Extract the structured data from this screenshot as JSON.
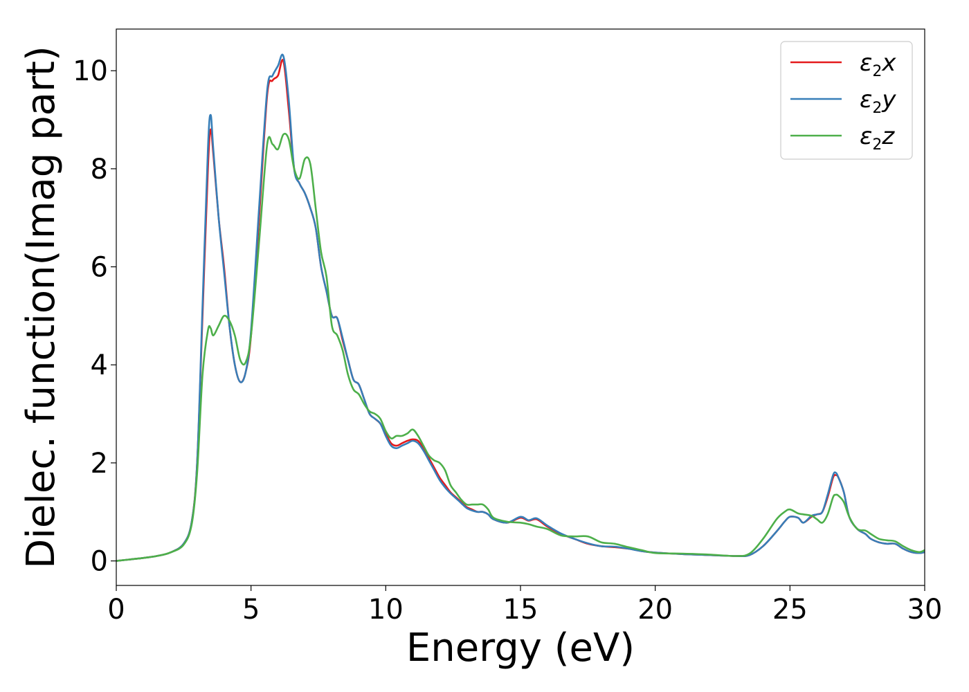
{
  "chart_data": {
    "type": "line",
    "title": "",
    "xlabel": "Energy (eV)",
    "ylabel": "Dielec. function(Imag part)",
    "xlim": [
      0,
      30
    ],
    "ylim": [
      -0.5,
      10.85
    ],
    "xticks": [
      0,
      5,
      10,
      15,
      20,
      25,
      30
    ],
    "yticks": [
      0,
      2,
      4,
      6,
      8,
      10
    ],
    "grid": false,
    "legend_position": "top-right",
    "x": [
      0,
      0.5,
      1,
      1.5,
      2,
      2.5,
      2.8,
      3.0,
      3.2,
      3.4,
      3.5,
      3.6,
      3.8,
      4.0,
      4.2,
      4.4,
      4.6,
      4.8,
      5.0,
      5.3,
      5.6,
      5.8,
      6.0,
      6.2,
      6.4,
      6.6,
      6.8,
      7.0,
      7.2,
      7.4,
      7.6,
      7.8,
      8.0,
      8.2,
      8.4,
      8.6,
      8.8,
      9.0,
      9.2,
      9.4,
      9.6,
      9.8,
      10.0,
      10.2,
      10.4,
      10.6,
      10.8,
      11.0,
      11.2,
      11.4,
      11.6,
      11.8,
      12.0,
      12.2,
      12.4,
      12.6,
      12.8,
      13.0,
      13.2,
      13.4,
      13.6,
      13.8,
      14.0,
      14.5,
      15.0,
      15.3,
      15.6,
      16.0,
      16.5,
      17.0,
      17.5,
      18.0,
      18.5,
      19.0,
      19.5,
      20.0,
      21.0,
      22.0,
      23.0,
      23.5,
      24.0,
      24.5,
      24.8,
      25.0,
      25.3,
      25.5,
      25.8,
      26.0,
      26.2,
      26.4,
      26.6,
      26.7,
      26.8,
      27.0,
      27.2,
      27.5,
      27.8,
      28.0,
      28.3,
      28.6,
      28.9,
      29.2,
      29.5,
      29.8,
      30.0
    ],
    "series": [
      {
        "name": "ε2x",
        "color": "#e41a1c",
        "values": [
          0.0,
          0.03,
          0.06,
          0.1,
          0.17,
          0.35,
          0.8,
          2.0,
          5.0,
          8.0,
          8.8,
          8.3,
          7.0,
          6.0,
          4.8,
          4.0,
          3.65,
          3.85,
          4.6,
          7.0,
          9.5,
          9.8,
          9.9,
          10.2,
          9.2,
          8.0,
          7.7,
          7.5,
          7.2,
          6.8,
          6.0,
          5.5,
          5.0,
          4.95,
          4.5,
          4.1,
          3.7,
          3.6,
          3.3,
          3.0,
          2.9,
          2.8,
          2.6,
          2.4,
          2.35,
          2.4,
          2.45,
          2.48,
          2.45,
          2.3,
          2.1,
          1.9,
          1.7,
          1.55,
          1.4,
          1.3,
          1.2,
          1.1,
          1.05,
          1.0,
          1.0,
          0.95,
          0.85,
          0.78,
          0.88,
          0.82,
          0.85,
          0.7,
          0.55,
          0.45,
          0.35,
          0.3,
          0.28,
          0.25,
          0.2,
          0.17,
          0.14,
          0.12,
          0.1,
          0.12,
          0.3,
          0.6,
          0.8,
          0.9,
          0.88,
          0.78,
          0.9,
          0.95,
          1.0,
          1.3,
          1.7,
          1.75,
          1.7,
          1.4,
          0.9,
          0.65,
          0.55,
          0.45,
          0.38,
          0.35,
          0.35,
          0.25,
          0.18,
          0.16,
          0.18
        ]
      },
      {
        "name": "ε2y",
        "color": "#377eb8",
        "values": [
          0.0,
          0.03,
          0.06,
          0.1,
          0.17,
          0.35,
          0.8,
          2.0,
          5.2,
          8.4,
          9.1,
          8.4,
          7.0,
          5.9,
          4.8,
          4.0,
          3.65,
          3.85,
          4.7,
          7.2,
          9.6,
          9.9,
          10.1,
          10.3,
          9.4,
          8.0,
          7.7,
          7.5,
          7.2,
          6.8,
          6.0,
          5.5,
          5.0,
          4.95,
          4.55,
          4.1,
          3.7,
          3.6,
          3.3,
          3.0,
          2.9,
          2.8,
          2.55,
          2.35,
          2.3,
          2.35,
          2.4,
          2.45,
          2.4,
          2.25,
          2.05,
          1.85,
          1.65,
          1.5,
          1.38,
          1.28,
          1.18,
          1.08,
          1.03,
          1.0,
          1.0,
          0.95,
          0.85,
          0.78,
          0.9,
          0.83,
          0.87,
          0.72,
          0.56,
          0.45,
          0.36,
          0.3,
          0.29,
          0.25,
          0.2,
          0.17,
          0.14,
          0.12,
          0.1,
          0.12,
          0.3,
          0.6,
          0.8,
          0.9,
          0.88,
          0.78,
          0.92,
          0.95,
          1.0,
          1.35,
          1.75,
          1.8,
          1.7,
          1.4,
          0.9,
          0.65,
          0.55,
          0.45,
          0.38,
          0.35,
          0.35,
          0.25,
          0.18,
          0.16,
          0.18
        ]
      },
      {
        "name": "ε2z",
        "color": "#4daf4a",
        "values": [
          0.0,
          0.03,
          0.06,
          0.1,
          0.17,
          0.33,
          0.75,
          1.8,
          3.8,
          4.7,
          4.75,
          4.6,
          4.8,
          5.0,
          4.9,
          4.6,
          4.1,
          4.05,
          4.6,
          6.5,
          8.5,
          8.5,
          8.4,
          8.7,
          8.6,
          8.0,
          7.8,
          8.2,
          8.1,
          7.2,
          6.3,
          5.8,
          4.8,
          4.6,
          4.3,
          3.8,
          3.5,
          3.4,
          3.2,
          3.05,
          3.0,
          2.9,
          2.65,
          2.5,
          2.55,
          2.55,
          2.6,
          2.68,
          2.55,
          2.35,
          2.15,
          2.05,
          2.0,
          1.85,
          1.55,
          1.4,
          1.25,
          1.15,
          1.15,
          1.15,
          1.15,
          1.05,
          0.88,
          0.8,
          0.78,
          0.75,
          0.7,
          0.65,
          0.52,
          0.5,
          0.5,
          0.38,
          0.35,
          0.28,
          0.22,
          0.16,
          0.15,
          0.13,
          0.1,
          0.15,
          0.45,
          0.85,
          1.0,
          1.05,
          0.97,
          0.95,
          0.92,
          0.85,
          0.78,
          0.95,
          1.3,
          1.35,
          1.33,
          1.2,
          0.9,
          0.65,
          0.62,
          0.55,
          0.45,
          0.42,
          0.4,
          0.3,
          0.22,
          0.18,
          0.22
        ]
      }
    ]
  }
}
